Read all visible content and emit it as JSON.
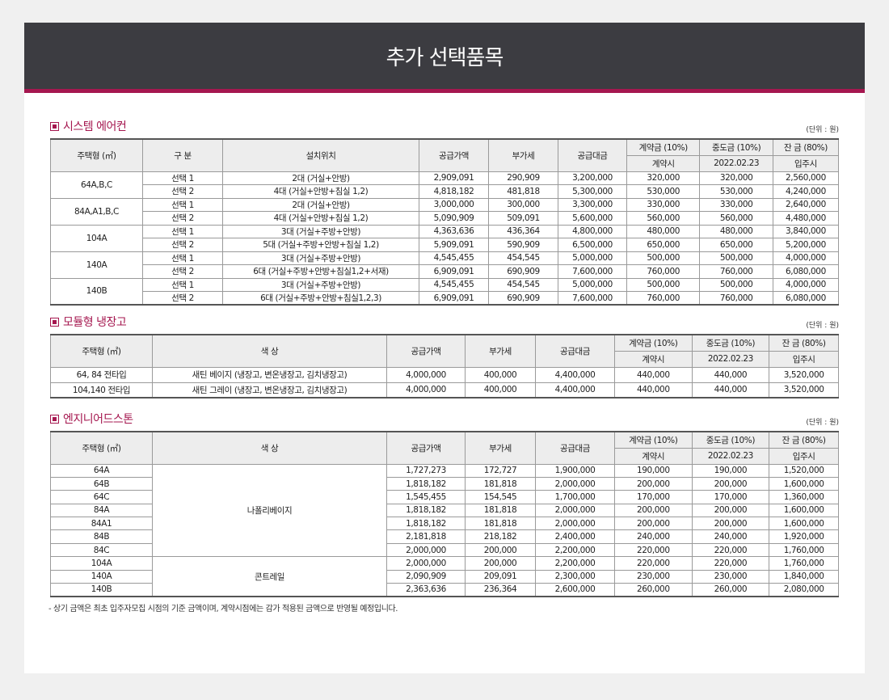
{
  "title": "추가 선택품목",
  "unit": "(단위 : 원)",
  "headers": {
    "type": "주택형 (㎡)",
    "option": "구 분",
    "location": "설치위치",
    "color": "색 상",
    "supply": "공급가액",
    "vat": "부가세",
    "total": "공급대금",
    "deposit": "계약금 (10%)",
    "mid": "중도금 (10%)",
    "balance": "잔 금 (80%)",
    "deposit_when": "계약시",
    "mid_when": "2022.02.23",
    "balance_when": "입주시"
  },
  "aircon": {
    "title": "시스템 에어컨",
    "groups": [
      {
        "type": "64A,B,C",
        "rows": [
          {
            "option": "선택 1",
            "location": "2대 (거실+안방)",
            "supply": "2,909,091",
            "vat": "290,909",
            "total": "3,200,000",
            "deposit": "320,000",
            "mid": "320,000",
            "balance": "2,560,000"
          },
          {
            "option": "선택 2",
            "location": "4대 (거실+안방+침실 1,2)",
            "supply": "4,818,182",
            "vat": "481,818",
            "total": "5,300,000",
            "deposit": "530,000",
            "mid": "530,000",
            "balance": "4,240,000"
          }
        ]
      },
      {
        "type": "84A,A1,B,C",
        "rows": [
          {
            "option": "선택 1",
            "location": "2대 (거실+안방)",
            "supply": "3,000,000",
            "vat": "300,000",
            "total": "3,300,000",
            "deposit": "330,000",
            "mid": "330,000",
            "balance": "2,640,000"
          },
          {
            "option": "선택 2",
            "location": "4대 (거실+안방+침실 1,2)",
            "supply": "5,090,909",
            "vat": "509,091",
            "total": "5,600,000",
            "deposit": "560,000",
            "mid": "560,000",
            "balance": "4,480,000"
          }
        ]
      },
      {
        "type": "104A",
        "rows": [
          {
            "option": "선택 1",
            "location": "3대 (거실+주방+안방)",
            "supply": "4,363,636",
            "vat": "436,364",
            "total": "4,800,000",
            "deposit": "480,000",
            "mid": "480,000",
            "balance": "3,840,000"
          },
          {
            "option": "선택 2",
            "location": "5대 (거실+주방+안방+침실 1,2)",
            "supply": "5,909,091",
            "vat": "590,909",
            "total": "6,500,000",
            "deposit": "650,000",
            "mid": "650,000",
            "balance": "5,200,000"
          }
        ]
      },
      {
        "type": "140A",
        "rows": [
          {
            "option": "선택 1",
            "location": "3대 (거실+주방+안방)",
            "supply": "4,545,455",
            "vat": "454,545",
            "total": "5,000,000",
            "deposit": "500,000",
            "mid": "500,000",
            "balance": "4,000,000"
          },
          {
            "option": "선택 2",
            "location": "6대 (거실+주방+안방+침실1,2+서재)",
            "supply": "6,909,091",
            "vat": "690,909",
            "total": "7,600,000",
            "deposit": "760,000",
            "mid": "760,000",
            "balance": "6,080,000"
          }
        ]
      },
      {
        "type": "140B",
        "rows": [
          {
            "option": "선택 1",
            "location": "3대 (거실+주방+안방)",
            "supply": "4,545,455",
            "vat": "454,545",
            "total": "5,000,000",
            "deposit": "500,000",
            "mid": "500,000",
            "balance": "4,000,000"
          },
          {
            "option": "선택 2",
            "location": "6대 (거실+주방+안방+침실1,2,3)",
            "supply": "6,909,091",
            "vat": "690,909",
            "total": "7,600,000",
            "deposit": "760,000",
            "mid": "760,000",
            "balance": "6,080,000"
          }
        ]
      }
    ]
  },
  "fridge": {
    "title": "모듈형 냉장고",
    "rows": [
      {
        "type": "64, 84 전타입",
        "color": "새틴 베이지 (냉장고, 변온냉장고, 김치냉장고)",
        "supply": "4,000,000",
        "vat": "400,000",
        "total": "4,400,000",
        "deposit": "440,000",
        "mid": "440,000",
        "balance": "3,520,000"
      },
      {
        "type": "104,140 전타입",
        "color": "새틴 그레이 (냉장고, 변온냉장고, 김치냉장고)",
        "supply": "4,000,000",
        "vat": "400,000",
        "total": "4,400,000",
        "deposit": "440,000",
        "mid": "440,000",
        "balance": "3,520,000"
      }
    ]
  },
  "stone": {
    "title": "엔지니어드스톤",
    "groups": [
      {
        "color": "나폴리베이지",
        "rows": [
          {
            "type": "64A",
            "supply": "1,727,273",
            "vat": "172,727",
            "total": "1,900,000",
            "deposit": "190,000",
            "mid": "190,000",
            "balance": "1,520,000"
          },
          {
            "type": "64B",
            "supply": "1,818,182",
            "vat": "181,818",
            "total": "2,000,000",
            "deposit": "200,000",
            "mid": "200,000",
            "balance": "1,600,000"
          },
          {
            "type": "64C",
            "supply": "1,545,455",
            "vat": "154,545",
            "total": "1,700,000",
            "deposit": "170,000",
            "mid": "170,000",
            "balance": "1,360,000"
          },
          {
            "type": "84A",
            "supply": "1,818,182",
            "vat": "181,818",
            "total": "2,000,000",
            "deposit": "200,000",
            "mid": "200,000",
            "balance": "1,600,000"
          },
          {
            "type": "84A1",
            "supply": "1,818,182",
            "vat": "181,818",
            "total": "2,000,000",
            "deposit": "200,000",
            "mid": "200,000",
            "balance": "1,600,000"
          },
          {
            "type": "84B",
            "supply": "2,181,818",
            "vat": "218,182",
            "total": "2,400,000",
            "deposit": "240,000",
            "mid": "240,000",
            "balance": "1,920,000"
          },
          {
            "type": "84C",
            "supply": "2,000,000",
            "vat": "200,000",
            "total": "2,200,000",
            "deposit": "220,000",
            "mid": "220,000",
            "balance": "1,760,000"
          }
        ]
      },
      {
        "color": "콘트레일",
        "rows": [
          {
            "type": "104A",
            "supply": "2,000,000",
            "vat": "200,000",
            "total": "2,200,000",
            "deposit": "220,000",
            "mid": "220,000",
            "balance": "1,760,000"
          },
          {
            "type": "140A",
            "supply": "2,090,909",
            "vat": "209,091",
            "total": "2,300,000",
            "deposit": "230,000",
            "mid": "230,000",
            "balance": "1,840,000"
          },
          {
            "type": "140B",
            "supply": "2,363,636",
            "vat": "236,364",
            "total": "2,600,000",
            "deposit": "260,000",
            "mid": "260,000",
            "balance": "2,080,000"
          }
        ]
      }
    ]
  },
  "note": "- 상기 금액은 최초 입주자모집 시점의 기준 금액이며, 계약시점에는 감가 적용된 금액으로 반영될 예정입니다.",
  "colors": {
    "header_bg": "#3c3c41",
    "accent": "#a5174f",
    "table_header_bg": "#ededed"
  }
}
